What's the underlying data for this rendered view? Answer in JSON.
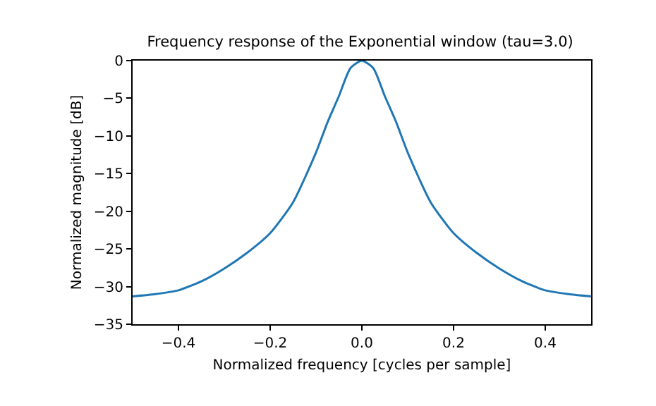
{
  "chart_data": {
    "type": "line",
    "title": "Frequency response of the Exponential window (tau=3.0)",
    "xlabel": "Normalized frequency [cycles per sample]",
    "ylabel": "Normalized magnitude [dB]",
    "x": [
      -0.5,
      -0.45,
      -0.4,
      -0.35,
      -0.3,
      -0.25,
      -0.2,
      -0.15,
      -0.1,
      -0.075,
      -0.05,
      -0.025,
      0,
      0.025,
      0.05,
      0.075,
      0.1,
      0.15,
      0.2,
      0.25,
      0.3,
      0.35,
      0.4,
      0.45,
      0.5
    ],
    "series": [
      {
        "color": "#1f77b4",
        "values": [
          -31.3,
          -31.0,
          -30.5,
          -29.3,
          -27.6,
          -25.5,
          -22.9,
          -18.8,
          -12.2,
          -8.2,
          -4.7,
          -1.0,
          0,
          -1.0,
          -4.7,
          -8.2,
          -12.2,
          -18.8,
          -22.9,
          -25.5,
          -27.6,
          -29.3,
          -30.5,
          -31.0,
          -31.3
        ]
      }
    ],
    "xlim": [
      -0.5,
      0.5
    ],
    "xticks": [
      {
        "value": -0.4,
        "label": "−0.4"
      },
      {
        "value": -0.2,
        "label": "−0.2"
      },
      {
        "value": 0,
        "label": "0.0"
      },
      {
        "value": 0.2,
        "label": "0.2"
      },
      {
        "value": 0.4,
        "label": "0.4"
      }
    ],
    "ylim": [
      -35,
      0
    ],
    "yticks": [
      {
        "value": -35,
        "label": "−35"
      },
      {
        "value": -30,
        "label": "−30"
      },
      {
        "value": -25,
        "label": "−25"
      },
      {
        "value": -20,
        "label": "−20"
      },
      {
        "value": -15,
        "label": "−15"
      },
      {
        "value": -10,
        "label": "−10"
      },
      {
        "value": -5,
        "label": "−5"
      },
      0
    ],
    "grid": false,
    "marker": "none",
    "line_style": "solid"
  }
}
